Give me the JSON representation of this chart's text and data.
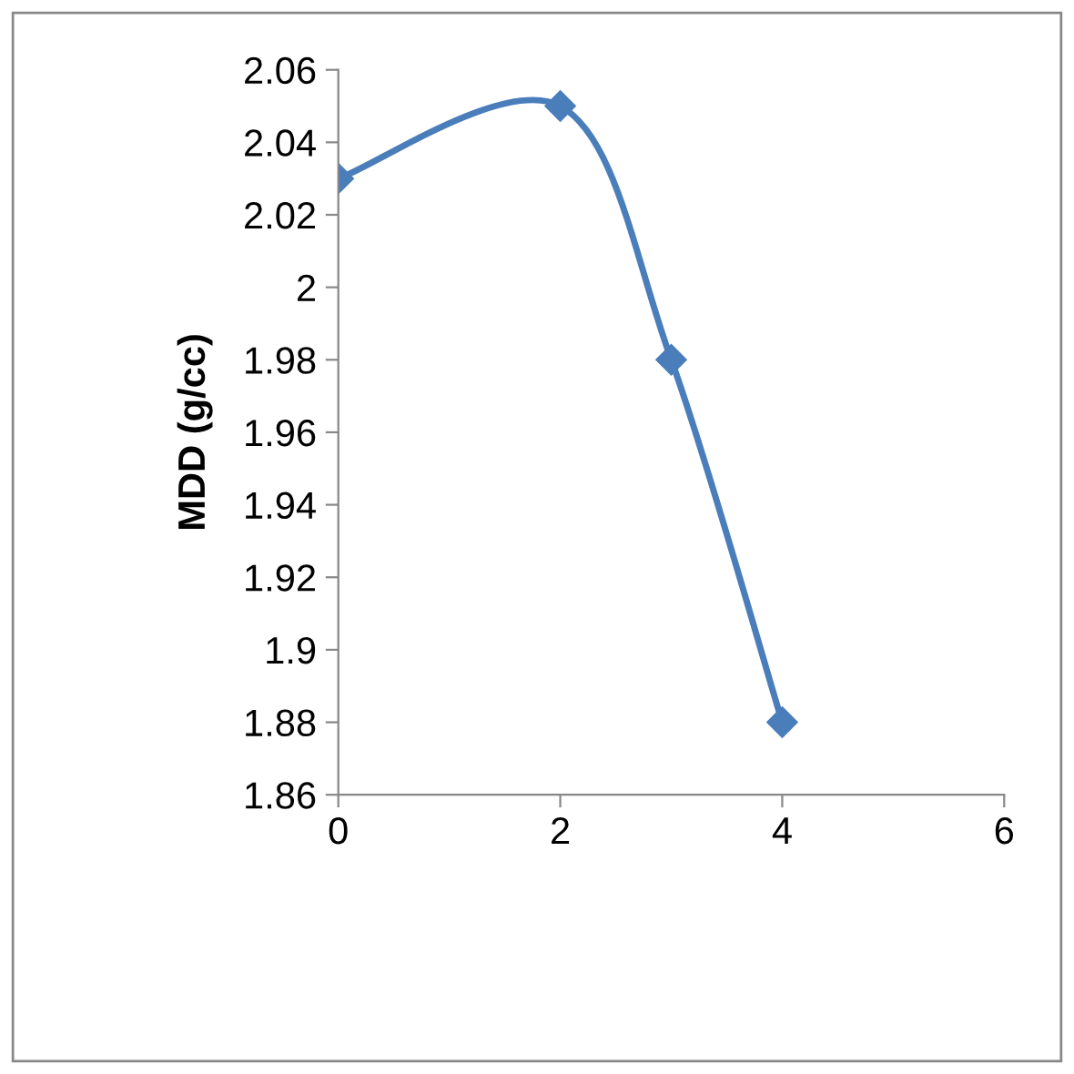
{
  "chart_data": {
    "type": "line",
    "ylabel": "MDD (g/cc)",
    "x": [
      0,
      2,
      3,
      4
    ],
    "series": [
      {
        "color": "#4a7ebb",
        "values": [
          2.03,
          2.05,
          1.98,
          1.88
        ]
      }
    ],
    "xlim": [
      0,
      6
    ],
    "xticks": [
      0,
      2,
      4,
      6
    ],
    "ylim": [
      1.86,
      2.06
    ],
    "yticks": [
      1.86,
      1.88,
      1.9,
      1.92,
      1.94,
      1.96,
      1.98,
      2,
      2.02,
      2.04,
      2.06
    ],
    "marker": "diamond",
    "line_style": "solid",
    "grid": false,
    "legend": false
  }
}
